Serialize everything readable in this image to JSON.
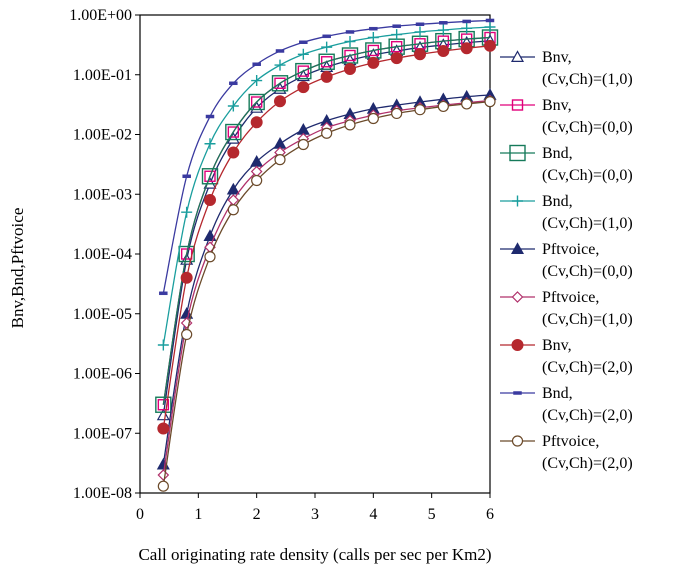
{
  "chart_data": {
    "type": "line",
    "title": "",
    "xlabel": "Call originating rate density (calls per sec per Km2)",
    "ylabel": "Bnv,Bnd,Pftvoice",
    "y_scale": "log",
    "xlim": [
      0,
      6
    ],
    "ylim": [
      1e-08,
      1
    ],
    "grid": false,
    "legend_position": "right",
    "x_ticks": [
      0,
      1,
      2,
      3,
      4,
      5,
      6
    ],
    "x_tick_labels": [
      "0",
      "1",
      "2",
      "3",
      "4",
      "5",
      "6"
    ],
    "y_ticks": [
      1e-08,
      1e-07,
      1e-06,
      1e-05,
      0.0001,
      0.001,
      0.01,
      0.1,
      1
    ],
    "y_tick_labels": [
      "1.00E-08",
      "1.00E-07",
      "1.00E-06",
      "1.00E-05",
      "1.00E-04",
      "1.00E-03",
      "1.00E-02",
      "1.00E-01",
      "1.00E+00"
    ],
    "x": [
      0.4,
      0.8,
      1.2,
      1.6,
      2.0,
      2.4,
      2.8,
      3.2,
      3.6,
      4.0,
      4.4,
      4.8,
      5.2,
      5.6,
      6.0
    ],
    "series": [
      {
        "name": [
          "Bnv,",
          "(Cv,Ch)=(1,0)"
        ],
        "color": "#1f2a6e",
        "marker": "triangle-open",
        "values": [
          2e-07,
          8e-05,
          0.0015,
          0.0085,
          0.028,
          0.058,
          0.095,
          0.135,
          0.175,
          0.215,
          0.25,
          0.285,
          0.315,
          0.345,
          0.37
        ]
      },
      {
        "name": [
          "Bnv,",
          "(Cv,Ch)=(0,0)"
        ],
        "color": "#e0007a",
        "marker": "square-open",
        "values": [
          3e-07,
          0.0001,
          0.002,
          0.011,
          0.035,
          0.072,
          0.115,
          0.165,
          0.21,
          0.255,
          0.295,
          0.33,
          0.365,
          0.395,
          0.42
        ]
      },
      {
        "name": [
          "Bnd,",
          "(Cv,Ch)=(0,0)"
        ],
        "color": "#167a5a",
        "marker": "square-big-open",
        "values": [
          3e-07,
          0.0001,
          0.002,
          0.011,
          0.035,
          0.072,
          0.115,
          0.165,
          0.21,
          0.255,
          0.295,
          0.33,
          0.365,
          0.395,
          0.42
        ]
      },
      {
        "name": [
          "Bnd,",
          "(Cv,Ch)=(1,0)"
        ],
        "color": "#1a9e9e",
        "marker": "plus",
        "values": [
          3e-06,
          0.0005,
          0.007,
          0.03,
          0.08,
          0.145,
          0.22,
          0.29,
          0.36,
          0.42,
          0.47,
          0.52,
          0.56,
          0.6,
          0.63
        ]
      },
      {
        "name": [
          "Pftvoice,",
          "(Cv,Ch)=(0,0)"
        ],
        "color": "#1f2a6e",
        "marker": "triangle-filled",
        "values": [
          3e-08,
          1e-05,
          0.0002,
          0.0012,
          0.0035,
          0.007,
          0.012,
          0.017,
          0.022,
          0.027,
          0.031,
          0.035,
          0.039,
          0.043,
          0.046
        ]
      },
      {
        "name": [
          "Pftvoice,",
          "(Cv,Ch)=(1,0)"
        ],
        "color": "#b0306a",
        "marker": "diamond-open",
        "values": [
          2e-08,
          7e-06,
          0.00013,
          0.0008,
          0.0024,
          0.005,
          0.0085,
          0.013,
          0.017,
          0.021,
          0.025,
          0.028,
          0.031,
          0.034,
          0.037
        ]
      },
      {
        "name": [
          "Bnv,",
          "(Cv,Ch)=(2,0)"
        ],
        "color": "#b5282e",
        "marker": "circle-filled",
        "values": [
          1.2e-07,
          4e-05,
          0.0008,
          0.005,
          0.016,
          0.036,
          0.062,
          0.092,
          0.125,
          0.158,
          0.19,
          0.22,
          0.25,
          0.278,
          0.305
        ]
      },
      {
        "name": [
          "Bnd,",
          "(Cv,Ch)=(2,0)"
        ],
        "color": "#3a3aa0",
        "marker": "dash",
        "values": [
          2.2e-05,
          0.002,
          0.02,
          0.072,
          0.15,
          0.25,
          0.35,
          0.44,
          0.52,
          0.59,
          0.65,
          0.7,
          0.74,
          0.78,
          0.81
        ]
      },
      {
        "name": [
          "Pftvoice,",
          "(Cv,Ch)=(2,0)"
        ],
        "color": "#6b4a2a",
        "marker": "circle-open",
        "values": [
          1.3e-08,
          4.5e-06,
          9e-05,
          0.00055,
          0.0017,
          0.0038,
          0.0068,
          0.0105,
          0.0145,
          0.0185,
          0.0225,
          0.026,
          0.0295,
          0.0325,
          0.0355
        ]
      }
    ]
  }
}
